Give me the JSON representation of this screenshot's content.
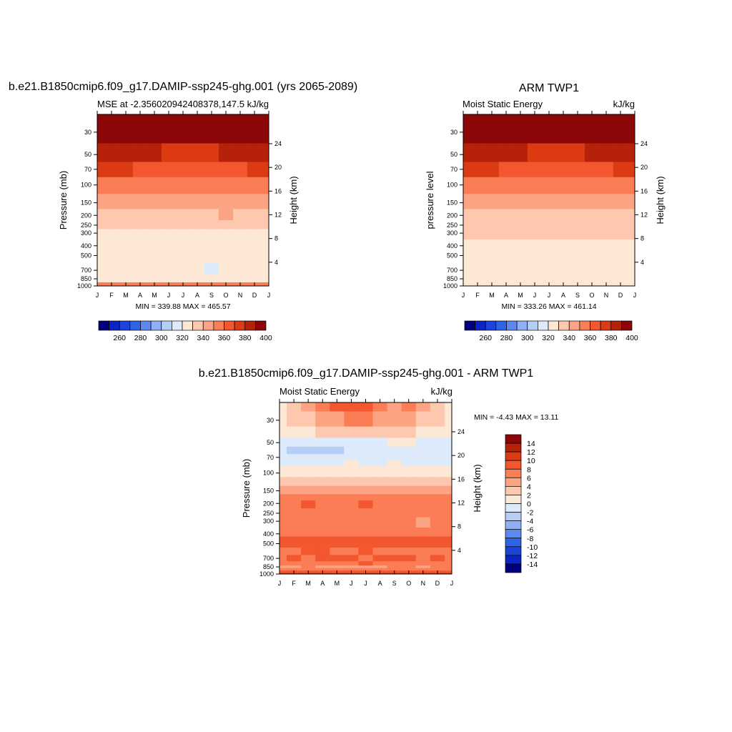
{
  "figure": {
    "panels": [
      {
        "id": "model",
        "title": "b.e21.B1850cmip6.f09_g17.DAMIP-ssp245-ghg.001 (yrs 2065-2089)",
        "left_label": "MSE at -2.356020942408378,147.5",
        "right_label": "kJ/kg",
        "ylabel_left": "Pressure (mb)",
        "ylabel_right": "Height (km)",
        "stats": "MIN = 339.88 MAX = 465.57"
      },
      {
        "id": "obs",
        "title": "ARM TWP1",
        "left_label": "Moist Static Energy",
        "right_label": "kJ/kg",
        "ylabel_left": "pressure level",
        "ylabel_right": "Height (km)",
        "stats": "MIN = 333.26 MAX = 461.14"
      },
      {
        "id": "diff",
        "title": "b.e21.B1850cmip6.f09_g17.DAMIP-ssp245-ghg.001 - ARM TWP1",
        "left_label": "Moist Static Energy",
        "right_label": "kJ/kg",
        "ylabel_left": "Pressure (mb)",
        "ylabel_right": "Height (km)",
        "stats": "MIN =  -4.43 MAX =  13.11"
      }
    ]
  },
  "chart_data": [
    {
      "type": "heatmap",
      "title": "b.e21.B1850cmip6.f09_g17.DAMIP-ssp245-ghg.001 (yrs 2065-2089)",
      "subtitle": "MSE at -2.356020942408378,147.5",
      "units": "kJ/kg",
      "xlabel": "",
      "ylabel": "Pressure (mb)",
      "ylabel_right": "Height (km)",
      "x_ticks": [
        "J",
        "F",
        "M",
        "A",
        "M",
        "J",
        "J",
        "A",
        "S",
        "O",
        "N",
        "D",
        "J"
      ],
      "y_ticks": [
        30,
        50,
        70,
        100,
        150,
        200,
        250,
        300,
        400,
        500,
        700,
        850,
        1000
      ],
      "y_right_ticks": [
        24,
        20,
        16,
        12,
        8,
        4
      ],
      "ylim": [
        1000,
        20
      ],
      "y_scale": "log",
      "months": 13,
      "levels": [
        30,
        50,
        70,
        100,
        150,
        200,
        250,
        300,
        400,
        500,
        700,
        850,
        1000
      ],
      "field_kj_per_kg": [
        [
          425,
          425,
          425,
          425,
          425,
          425,
          425,
          425,
          425,
          425,
          425,
          425,
          425
        ],
        [
          395,
          393,
          392,
          391,
          390,
          389,
          389,
          389,
          389,
          390,
          391,
          392,
          395
        ],
        [
          382,
          381,
          380,
          379,
          378,
          377,
          377,
          377,
          377,
          378,
          379,
          380,
          382
        ],
        [
          364,
          363,
          363,
          362,
          362,
          361,
          361,
          361,
          361,
          362,
          362,
          363,
          364
        ],
        [
          356,
          356,
          356,
          356,
          356,
          356,
          356,
          356,
          356,
          356,
          356,
          356,
          356
        ],
        [
          349,
          349,
          349,
          349,
          349,
          349,
          349,
          349,
          349,
          350,
          349,
          349,
          349
        ],
        [
          340,
          341,
          341,
          342,
          342,
          343,
          342,
          342,
          343,
          344,
          343,
          342,
          341
        ],
        [
          339,
          339,
          339,
          339,
          339,
          339,
          339,
          339,
          339,
          339,
          339,
          339,
          339
        ],
        [
          336,
          336,
          336,
          336,
          336,
          336,
          336,
          336,
          336,
          336,
          336,
          336,
          336
        ],
        [
          335,
          335,
          335,
          335,
          335,
          335,
          335,
          335,
          335,
          335,
          335,
          335,
          335
        ],
        [
          332,
          332,
          332,
          332,
          332,
          332,
          332,
          332,
          329,
          332,
          332,
          332,
          332
        ],
        [
          330,
          330,
          330,
          330,
          330,
          330,
          330,
          330,
          330,
          330,
          330,
          330,
          330
        ],
        [
          365,
          366,
          366,
          366,
          366,
          365,
          365,
          365,
          365,
          365,
          366,
          366,
          365
        ]
      ],
      "stats": {
        "min": 339.88,
        "max": 465.57
      },
      "colorbar": {
        "levels": [
          250,
          260,
          270,
          280,
          290,
          300,
          310,
          320,
          330,
          340,
          350,
          360,
          370,
          380,
          390,
          400
        ],
        "labels": [
          260,
          280,
          300,
          320,
          340,
          360,
          380,
          400
        ]
      },
      "colors": [
        "#00007f",
        "#0a25c4",
        "#1b44db",
        "#2f63e8",
        "#5b89ef",
        "#8fb0f4",
        "#b6cdf6",
        "#ddeafb",
        "#fde8d6",
        "#fdc8ad",
        "#fca383",
        "#fb7d55",
        "#f2572f",
        "#dc3a13",
        "#b52109",
        "#8b0707"
      ]
    },
    {
      "type": "heatmap",
      "title": "ARM TWP1",
      "subtitle": "Moist Static Energy",
      "units": "kJ/kg",
      "xlabel": "",
      "ylabel": "pressure level",
      "ylabel_right": "Height (km)",
      "x_ticks": [
        "J",
        "F",
        "M",
        "A",
        "M",
        "J",
        "J",
        "A",
        "S",
        "O",
        "N",
        "D",
        "J"
      ],
      "y_ticks": [
        30,
        50,
        70,
        100,
        150,
        200,
        250,
        300,
        400,
        500,
        700,
        850,
        1000
      ],
      "y_right_ticks": [
        24,
        20,
        16,
        12,
        8,
        4
      ],
      "ylim": [
        1000,
        20
      ],
      "y_scale": "log",
      "months": 13,
      "levels": [
        30,
        50,
        70,
        100,
        150,
        200,
        250,
        300,
        400,
        500,
        700,
        850,
        1000
      ],
      "field_kj_per_kg": [
        [
          425,
          425,
          425,
          425,
          425,
          425,
          425,
          425,
          425,
          425,
          425,
          425,
          425
        ],
        [
          395,
          393,
          392,
          391,
          390,
          389,
          389,
          389,
          389,
          390,
          391,
          392,
          395
        ],
        [
          382,
          381,
          380,
          379,
          378,
          377,
          377,
          377,
          377,
          378,
          379,
          380,
          382
        ],
        [
          364,
          363,
          363,
          362,
          362,
          361,
          361,
          361,
          361,
          362,
          362,
          363,
          364
        ],
        [
          350,
          350,
          350,
          350,
          350,
          350,
          350,
          350,
          350,
          350,
          350,
          350,
          350
        ],
        [
          344,
          344,
          344,
          344,
          344,
          344,
          344,
          344,
          344,
          344,
          344,
          344,
          344
        ],
        [
          342,
          342,
          342,
          342,
          342,
          342,
          342,
          342,
          342,
          342,
          342,
          342,
          342
        ],
        [
          341,
          341,
          341,
          341,
          341,
          341,
          342,
          342,
          342,
          342,
          341,
          341,
          341
        ],
        [
          336,
          336,
          336,
          336,
          336,
          336,
          336,
          336,
          336,
          336,
          336,
          336,
          336
        ],
        [
          333,
          333,
          333,
          333,
          333,
          333,
          333,
          333,
          333,
          333,
          333,
          333,
          333
        ],
        [
          333,
          333,
          333,
          333,
          333,
          333,
          333,
          333,
          333,
          333,
          333,
          333,
          333
        ],
        [
          336,
          336,
          335,
          337,
          336,
          335,
          335,
          336,
          335,
          335,
          336,
          337,
          337
        ],
        [
          335,
          335,
          335,
          335,
          335,
          335,
          335,
          335,
          335,
          335,
          335,
          335,
          335
        ]
      ],
      "stats": {
        "min": 333.26,
        "max": 461.14
      },
      "colorbar": {
        "levels": [
          250,
          260,
          270,
          280,
          290,
          300,
          310,
          320,
          330,
          340,
          350,
          360,
          370,
          380,
          390,
          400
        ],
        "labels": [
          260,
          280,
          300,
          320,
          340,
          360,
          380,
          400
        ]
      },
      "colors": [
        "#00007f",
        "#0a25c4",
        "#1b44db",
        "#2f63e8",
        "#5b89ef",
        "#8fb0f4",
        "#b6cdf6",
        "#ddeafb",
        "#fde8d6",
        "#fdc8ad",
        "#fca383",
        "#fb7d55",
        "#f2572f",
        "#dc3a13",
        "#b52109",
        "#8b0707"
      ]
    },
    {
      "type": "heatmap",
      "title": "b.e21.B1850cmip6.f09_g17.DAMIP-ssp245-ghg.001 - ARM TWP1",
      "subtitle": "Moist Static Energy",
      "units": "kJ/kg",
      "xlabel": "",
      "ylabel": "Pressure (mb)",
      "ylabel_right": "Height (km)",
      "x_ticks": [
        "J",
        "F",
        "M",
        "A",
        "M",
        "J",
        "J",
        "A",
        "S",
        "O",
        "N",
        "D",
        "J"
      ],
      "y_ticks": [
        30,
        50,
        70,
        100,
        150,
        200,
        250,
        300,
        400,
        500,
        700,
        850,
        1000
      ],
      "y_right_ticks": [
        24,
        20,
        16,
        12,
        8,
        4
      ],
      "ylim": [
        1000,
        20
      ],
      "y_scale": "log",
      "months": 13,
      "levels": [
        20,
        30,
        40,
        50,
        60,
        70,
        80,
        90,
        100,
        120,
        150,
        175,
        200,
        250,
        300,
        400,
        450,
        500,
        600,
        700,
        800,
        850,
        900,
        950,
        1000
      ],
      "field_kj_per_kg": [
        [
          1,
          3,
          4,
          7,
          8,
          9,
          9,
          7,
          5,
          6,
          4,
          3,
          1
        ],
        [
          1,
          2,
          3,
          4,
          5,
          6,
          6,
          5,
          4,
          5,
          3,
          2,
          1
        ],
        [
          0,
          1,
          1,
          2,
          2,
          3,
          3,
          2,
          2,
          2,
          1,
          1,
          0
        ],
        [
          -1,
          -2,
          -2,
          -2,
          -2,
          -1,
          -1,
          -1,
          0,
          0,
          -1,
          -1,
          -1
        ],
        [
          -1,
          -3,
          -4,
          -3,
          -3,
          -2,
          -2,
          -1,
          -1,
          -1,
          -1,
          -1,
          -1
        ],
        [
          -2,
          -2,
          -2,
          -2,
          -2,
          -1,
          -2,
          -2,
          -1,
          -1,
          -1,
          -1,
          -1
        ],
        [
          -2,
          -1,
          -1,
          -1,
          -1,
          0,
          -2,
          -1,
          0,
          -1,
          -1,
          -1,
          -1
        ],
        [
          0,
          0,
          0,
          0,
          0,
          0,
          0,
          0,
          0,
          0,
          0,
          0,
          0
        ],
        [
          1,
          1,
          1,
          1,
          1,
          1,
          1,
          1,
          1,
          1,
          1,
          1,
          1
        ],
        [
          2,
          3,
          3,
          3,
          2,
          2,
          2,
          2,
          2,
          2,
          3,
          3,
          2
        ],
        [
          5,
          5,
          5,
          5,
          5,
          5,
          5,
          5,
          5,
          5,
          5,
          5,
          5
        ],
        [
          7,
          7,
          7,
          7,
          7,
          7,
          7,
          7,
          7,
          7,
          7,
          7,
          7
        ],
        [
          7,
          7,
          9,
          7,
          7,
          7,
          9,
          7,
          7,
          7,
          7,
          7,
          7
        ],
        [
          7,
          7,
          7,
          7,
          7,
          7,
          7,
          7,
          7,
          7,
          7,
          7,
          7
        ],
        [
          7,
          7,
          7,
          7,
          7,
          7,
          7,
          7,
          7,
          7,
          5,
          7,
          7
        ],
        [
          7,
          7,
          7,
          7,
          7,
          7,
          7,
          7,
          7,
          7,
          7,
          7,
          7
        ],
        [
          9,
          9,
          9,
          9,
          9,
          9,
          9,
          9,
          9,
          9,
          9,
          9,
          9
        ],
        [
          9,
          9,
          9,
          9,
          9,
          8,
          9,
          9,
          9,
          8,
          9,
          9,
          9
        ],
        [
          7,
          7,
          9,
          9,
          7,
          7,
          9,
          7,
          7,
          7,
          7,
          7,
          7
        ],
        [
          7,
          9,
          7,
          9,
          9,
          9,
          7,
          9,
          9,
          9,
          7,
          9,
          7
        ],
        [
          7,
          7,
          7,
          7,
          7,
          7,
          9,
          7,
          7,
          7,
          7,
          7,
          7
        ],
        [
          5,
          5,
          7,
          5,
          5,
          5,
          5,
          5,
          7,
          7,
          5,
          7,
          7
        ],
        [
          7,
          7,
          7,
          7,
          7,
          7,
          7,
          7,
          7,
          7,
          7,
          7,
          7
        ],
        [
          9,
          9,
          9,
          9,
          9,
          9,
          9,
          9,
          9,
          9,
          9,
          9,
          9
        ],
        [
          11,
          11,
          11,
          11,
          11,
          11,
          11,
          11,
          11,
          11,
          11,
          11,
          11
        ]
      ],
      "stats": {
        "min": -4.43,
        "max": 13.11
      },
      "colorbar": {
        "levels": [
          -14,
          -12,
          -10,
          -8,
          -6,
          -4,
          -2,
          0,
          2,
          4,
          6,
          8,
          10,
          12,
          14
        ],
        "labels": [
          14,
          12,
          10,
          8,
          6,
          4,
          2,
          0,
          -2,
          -4,
          -6,
          -8,
          -10,
          -12,
          -14
        ]
      },
      "colors": [
        "#00007f",
        "#0a25c4",
        "#1b44db",
        "#2f63e8",
        "#5b89ef",
        "#8fb0f4",
        "#b6cdf6",
        "#ddeafb",
        "#fde8d6",
        "#fdc8ad",
        "#fca383",
        "#fb7d55",
        "#f2572f",
        "#dc3a13",
        "#b52109",
        "#8b0707"
      ]
    }
  ]
}
